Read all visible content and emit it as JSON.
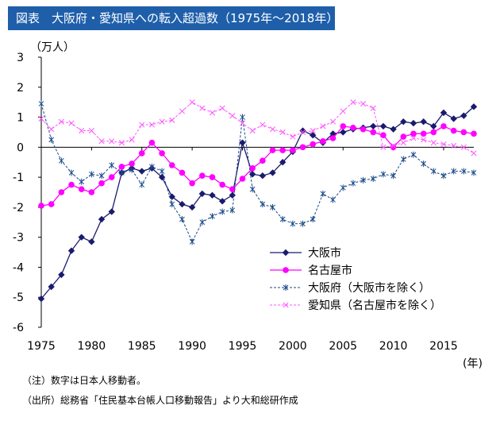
{
  "header": {
    "title": "図表　大阪府・愛知県への転入超過数（1975年～2018年）"
  },
  "notes": {
    "note1": "（注）数字は日本人移動者。",
    "note2": "（出所）総務省「住民基本台帳人口移動報告」より大和総研作成"
  },
  "chart_data": {
    "type": "line",
    "title": "図表　大阪府・愛知県への転入超過数（1975年～2018年）",
    "ylabel": "（万人）",
    "xlabel": "(年)",
    "ylim": [
      -6,
      3
    ],
    "xlim": [
      1975,
      2018
    ],
    "yticks": [
      3,
      2,
      1,
      0,
      -1,
      -2,
      -3,
      -4,
      -5,
      -6
    ],
    "xticks": [
      1975,
      1980,
      1985,
      1990,
      1995,
      2000,
      2005,
      2010,
      2015
    ],
    "grid": false,
    "legend": "lower-right",
    "x": [
      1975,
      1976,
      1977,
      1978,
      1979,
      1980,
      1981,
      1982,
      1983,
      1984,
      1985,
      1986,
      1987,
      1988,
      1989,
      1990,
      1991,
      1992,
      1993,
      1994,
      1995,
      1996,
      1997,
      1998,
      1999,
      2000,
      2001,
      2002,
      2003,
      2004,
      2005,
      2006,
      2007,
      2008,
      2009,
      2010,
      2011,
      2012,
      2013,
      2014,
      2015,
      2016,
      2017,
      2018
    ],
    "series": [
      {
        "name": "大阪市",
        "color": "#1a1a6e",
        "style": "solid-diamond",
        "values": [
          -5.05,
          -4.65,
          -4.25,
          -3.45,
          -3.0,
          -3.15,
          -2.4,
          -2.15,
          -0.85,
          -0.7,
          -0.8,
          -0.7,
          -1.0,
          -1.65,
          -1.9,
          -2.0,
          -1.55,
          -1.6,
          -1.8,
          -1.6,
          0.15,
          -0.9,
          -0.95,
          -0.85,
          -0.5,
          -0.15,
          0.55,
          0.4,
          0.15,
          0.45,
          0.5,
          0.6,
          0.65,
          0.7,
          0.7,
          0.6,
          0.85,
          0.8,
          0.85,
          0.7,
          1.15,
          0.95,
          1.05,
          1.35
        ]
      },
      {
        "name": "名古屋市",
        "color": "#ff00ff",
        "style": "solid-circle",
        "values": [
          -1.95,
          -1.9,
          -1.5,
          -1.25,
          -1.4,
          -1.5,
          -1.2,
          -1.0,
          -0.65,
          -0.55,
          -0.2,
          0.15,
          -0.2,
          -0.6,
          -0.85,
          -1.2,
          -0.95,
          -1.0,
          -1.25,
          -1.4,
          -1.05,
          -0.7,
          -0.45,
          -0.1,
          -0.1,
          -0.1,
          0.0,
          0.1,
          0.2,
          0.3,
          0.7,
          0.65,
          0.6,
          0.5,
          0.4,
          0.0,
          0.35,
          0.45,
          0.45,
          0.5,
          0.7,
          0.55,
          0.5,
          0.45
        ]
      },
      {
        "name": "大阪府（大阪市を除く）",
        "color": "#1a4a8a",
        "style": "dashed-star",
        "values": [
          1.45,
          0.25,
          -0.45,
          -0.85,
          -1.15,
          -0.9,
          -0.95,
          -0.6,
          -0.85,
          -0.75,
          -1.25,
          -0.65,
          -0.8,
          -1.9,
          -2.4,
          -3.15,
          -2.5,
          -2.3,
          -2.15,
          -2.1,
          1.0,
          -1.4,
          -1.9,
          -2.0,
          -2.4,
          -2.55,
          -2.55,
          -2.4,
          -1.55,
          -1.75,
          -1.35,
          -1.2,
          -1.1,
          -1.05,
          -0.9,
          -0.95,
          -0.4,
          -0.25,
          -0.55,
          -0.8,
          -0.95,
          -0.8,
          -0.8,
          -0.85
        ]
      },
      {
        "name": "愛知県（名古屋市を除く）",
        "color": "#ff55ff",
        "style": "dashed-x",
        "values": [
          0.95,
          0.6,
          0.85,
          0.8,
          0.55,
          0.55,
          0.2,
          0.2,
          0.15,
          0.25,
          0.75,
          0.75,
          0.85,
          0.9,
          1.2,
          1.5,
          1.3,
          1.15,
          1.3,
          1.05,
          0.8,
          0.55,
          0.75,
          0.6,
          0.5,
          0.35,
          0.5,
          0.55,
          0.7,
          0.85,
          1.2,
          1.5,
          1.45,
          1.3,
          0.0,
          0.05,
          0.15,
          0.3,
          0.25,
          0.15,
          0.1,
          0.05,
          0.0,
          -0.2
        ]
      }
    ]
  }
}
